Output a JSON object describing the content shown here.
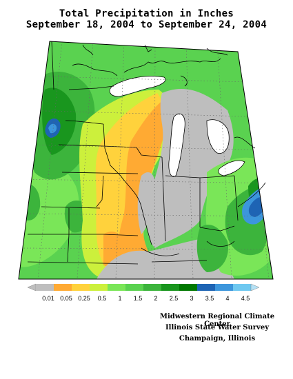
{
  "title": {
    "line1": "Total Precipitation in Inches",
    "line2": "September 18, 2004 to September 24, 2004"
  },
  "legend": {
    "labels": [
      "0.01",
      "0.05",
      "0.25",
      "0.5",
      "1",
      "1.5",
      "2",
      "2.5",
      "3",
      "3.5",
      "4",
      "4.5"
    ],
    "colors": [
      "#bebebe",
      "#ffaa33",
      "#ffd23c",
      "#ccf03c",
      "#7ae658",
      "#5ad250",
      "#3cb43c",
      "#19961e",
      "#007800",
      "#1e64b4",
      "#3c96dc",
      "#6ec8f0"
    ]
  },
  "credits": {
    "line1": "Midwestern Regional Climate Center",
    "line2": "Illinois State Water Survey",
    "line3": "Champaign, Illinois"
  }
}
